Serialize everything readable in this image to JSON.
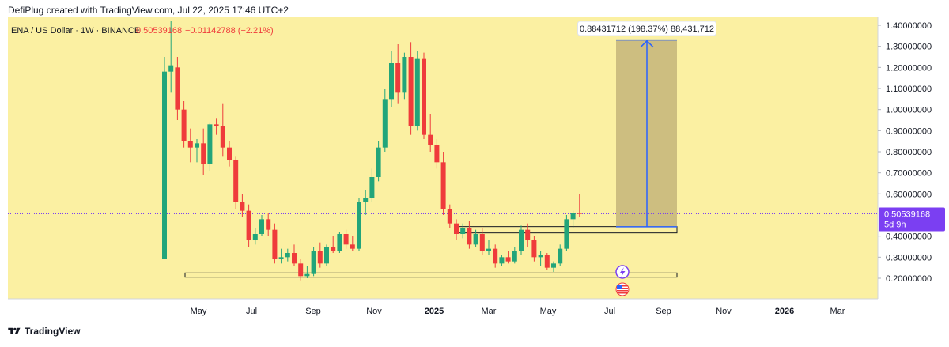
{
  "header": {
    "credit": "DefiPlug created with TradingView.com, Jul 22, 2025 17:46 UTC+2"
  },
  "legend": {
    "symbol": "ENA / US Dollar · 1W · BINANCE",
    "price": "0.50539168",
    "change": "−0.01142788 (−2.21%)"
  },
  "measure_label": "0.88431712 (198.37%) 88,431,712",
  "price_badge": {
    "price": "0.50539168",
    "countdown": "5d 9h"
  },
  "footer": {
    "brand": "TradingView"
  },
  "colors": {
    "background": "#fbf0a2",
    "up": "#22a57a",
    "down": "#ef3b3b",
    "badge": "#7b3ff2",
    "measure": "#2962ff",
    "measure_fill": "#c4b57a"
  },
  "icons": [
    "tradingview-logo-icon",
    "lightning-icon",
    "us-flag-icon"
  ],
  "chart_data": {
    "type": "candlestick",
    "interval": "1W",
    "y_ticks": [
      "1.40000000",
      "1.30000000",
      "1.20000000",
      "1.10000000",
      "1.00000000",
      "0.90000000",
      "0.80000000",
      "0.70000000",
      "0.60000000",
      "0.40000000",
      "0.30000000",
      "0.20000000"
    ],
    "x_ticks": [
      "May",
      "Jul",
      "Sep",
      "Nov",
      "2025",
      "Mar",
      "May",
      "Jul",
      "Sep",
      "Nov",
      "2026",
      "Mar"
    ],
    "bold_x_ticks": [
      "2025",
      "2026"
    ],
    "ylim": [
      0.1,
      1.45
    ],
    "current_price": 0.50539168,
    "support_zones": [
      {
        "low": 0.205,
        "high": 0.225,
        "from_week": 1,
        "to_week": 67
      },
      {
        "low": 0.415,
        "high": 0.445,
        "from_week": 39,
        "to_week": 67
      }
    ],
    "measure": {
      "from": 0.444,
      "to": 1.33,
      "from_week": 60,
      "to_week": 67
    },
    "candles": [
      {
        "o": 0.29,
        "h": 1.25,
        "l": 0.29,
        "c": 1.18
      },
      {
        "o": 1.18,
        "h": 1.42,
        "l": 1.08,
        "c": 1.21
      },
      {
        "o": 1.2,
        "h": 1.25,
        "l": 0.95,
        "c": 1.0
      },
      {
        "o": 1.0,
        "h": 1.04,
        "l": 0.82,
        "c": 0.85
      },
      {
        "o": 0.85,
        "h": 0.91,
        "l": 0.75,
        "c": 0.82
      },
      {
        "o": 0.82,
        "h": 0.86,
        "l": 0.75,
        "c": 0.84
      },
      {
        "o": 0.84,
        "h": 0.91,
        "l": 0.69,
        "c": 0.74
      },
      {
        "o": 0.74,
        "h": 0.94,
        "l": 0.71,
        "c": 0.93
      },
      {
        "o": 0.93,
        "h": 0.96,
        "l": 0.88,
        "c": 0.92
      },
      {
        "o": 0.92,
        "h": 1.03,
        "l": 0.78,
        "c": 0.82
      },
      {
        "o": 0.82,
        "h": 0.85,
        "l": 0.73,
        "c": 0.76
      },
      {
        "o": 0.76,
        "h": 0.78,
        "l": 0.53,
        "c": 0.56
      },
      {
        "o": 0.56,
        "h": 0.6,
        "l": 0.49,
        "c": 0.52
      },
      {
        "o": 0.52,
        "h": 0.55,
        "l": 0.35,
        "c": 0.38
      },
      {
        "o": 0.38,
        "h": 0.44,
        "l": 0.36,
        "c": 0.41
      },
      {
        "o": 0.41,
        "h": 0.5,
        "l": 0.4,
        "c": 0.48
      },
      {
        "o": 0.48,
        "h": 0.51,
        "l": 0.4,
        "c": 0.43
      },
      {
        "o": 0.43,
        "h": 0.46,
        "l": 0.27,
        "c": 0.29
      },
      {
        "o": 0.29,
        "h": 0.34,
        "l": 0.27,
        "c": 0.3
      },
      {
        "o": 0.3,
        "h": 0.34,
        "l": 0.28,
        "c": 0.32
      },
      {
        "o": 0.32,
        "h": 0.36,
        "l": 0.26,
        "c": 0.27
      },
      {
        "o": 0.27,
        "h": 0.29,
        "l": 0.19,
        "c": 0.21
      },
      {
        "o": 0.21,
        "h": 0.26,
        "l": 0.2,
        "c": 0.22
      },
      {
        "o": 0.22,
        "h": 0.35,
        "l": 0.21,
        "c": 0.33
      },
      {
        "o": 0.33,
        "h": 0.37,
        "l": 0.25,
        "c": 0.27
      },
      {
        "o": 0.27,
        "h": 0.36,
        "l": 0.26,
        "c": 0.35
      },
      {
        "o": 0.35,
        "h": 0.4,
        "l": 0.32,
        "c": 0.33
      },
      {
        "o": 0.33,
        "h": 0.42,
        "l": 0.32,
        "c": 0.41
      },
      {
        "o": 0.41,
        "h": 0.43,
        "l": 0.34,
        "c": 0.36
      },
      {
        "o": 0.36,
        "h": 0.4,
        "l": 0.33,
        "c": 0.34
      },
      {
        "o": 0.34,
        "h": 0.58,
        "l": 0.33,
        "c": 0.56
      },
      {
        "o": 0.56,
        "h": 0.62,
        "l": 0.5,
        "c": 0.58
      },
      {
        "o": 0.58,
        "h": 0.72,
        "l": 0.56,
        "c": 0.68
      },
      {
        "o": 0.68,
        "h": 0.85,
        "l": 0.66,
        "c": 0.82
      },
      {
        "o": 0.82,
        "h": 1.1,
        "l": 0.8,
        "c": 1.05
      },
      {
        "o": 1.05,
        "h": 1.28,
        "l": 1.01,
        "c": 1.22
      },
      {
        "o": 1.22,
        "h": 1.31,
        "l": 1.03,
        "c": 1.08
      },
      {
        "o": 1.08,
        "h": 1.27,
        "l": 1.05,
        "c": 1.25
      },
      {
        "o": 1.25,
        "h": 1.32,
        "l": 0.88,
        "c": 0.92
      },
      {
        "o": 0.92,
        "h": 1.28,
        "l": 0.9,
        "c": 1.24
      },
      {
        "o": 1.24,
        "h": 1.27,
        "l": 0.86,
        "c": 0.88
      },
      {
        "o": 0.88,
        "h": 0.98,
        "l": 0.8,
        "c": 0.83
      },
      {
        "o": 0.83,
        "h": 0.86,
        "l": 0.72,
        "c": 0.75
      },
      {
        "o": 0.75,
        "h": 0.8,
        "l": 0.5,
        "c": 0.53
      },
      {
        "o": 0.53,
        "h": 0.55,
        "l": 0.44,
        "c": 0.46
      },
      {
        "o": 0.46,
        "h": 0.48,
        "l": 0.38,
        "c": 0.41
      },
      {
        "o": 0.41,
        "h": 0.46,
        "l": 0.39,
        "c": 0.44
      },
      {
        "o": 0.44,
        "h": 0.47,
        "l": 0.34,
        "c": 0.36
      },
      {
        "o": 0.36,
        "h": 0.43,
        "l": 0.35,
        "c": 0.41
      },
      {
        "o": 0.41,
        "h": 0.44,
        "l": 0.31,
        "c": 0.33
      },
      {
        "o": 0.33,
        "h": 0.38,
        "l": 0.31,
        "c": 0.34
      },
      {
        "o": 0.34,
        "h": 0.36,
        "l": 0.25,
        "c": 0.27
      },
      {
        "o": 0.27,
        "h": 0.31,
        "l": 0.26,
        "c": 0.3
      },
      {
        "o": 0.3,
        "h": 0.33,
        "l": 0.27,
        "c": 0.28
      },
      {
        "o": 0.28,
        "h": 0.35,
        "l": 0.27,
        "c": 0.33
      },
      {
        "o": 0.33,
        "h": 0.45,
        "l": 0.31,
        "c": 0.43
      },
      {
        "o": 0.43,
        "h": 0.46,
        "l": 0.35,
        "c": 0.38
      },
      {
        "o": 0.38,
        "h": 0.4,
        "l": 0.28,
        "c": 0.3
      },
      {
        "o": 0.3,
        "h": 0.33,
        "l": 0.26,
        "c": 0.31
      },
      {
        "o": 0.31,
        "h": 0.32,
        "l": 0.24,
        "c": 0.25
      },
      {
        "o": 0.25,
        "h": 0.28,
        "l": 0.23,
        "c": 0.27
      },
      {
        "o": 0.27,
        "h": 0.36,
        "l": 0.26,
        "c": 0.34
      },
      {
        "o": 0.34,
        "h": 0.5,
        "l": 0.33,
        "c": 0.48
      },
      {
        "o": 0.48,
        "h": 0.52,
        "l": 0.44,
        "c": 0.51
      },
      {
        "o": 0.51,
        "h": 0.6,
        "l": 0.49,
        "c": 0.505
      }
    ]
  }
}
